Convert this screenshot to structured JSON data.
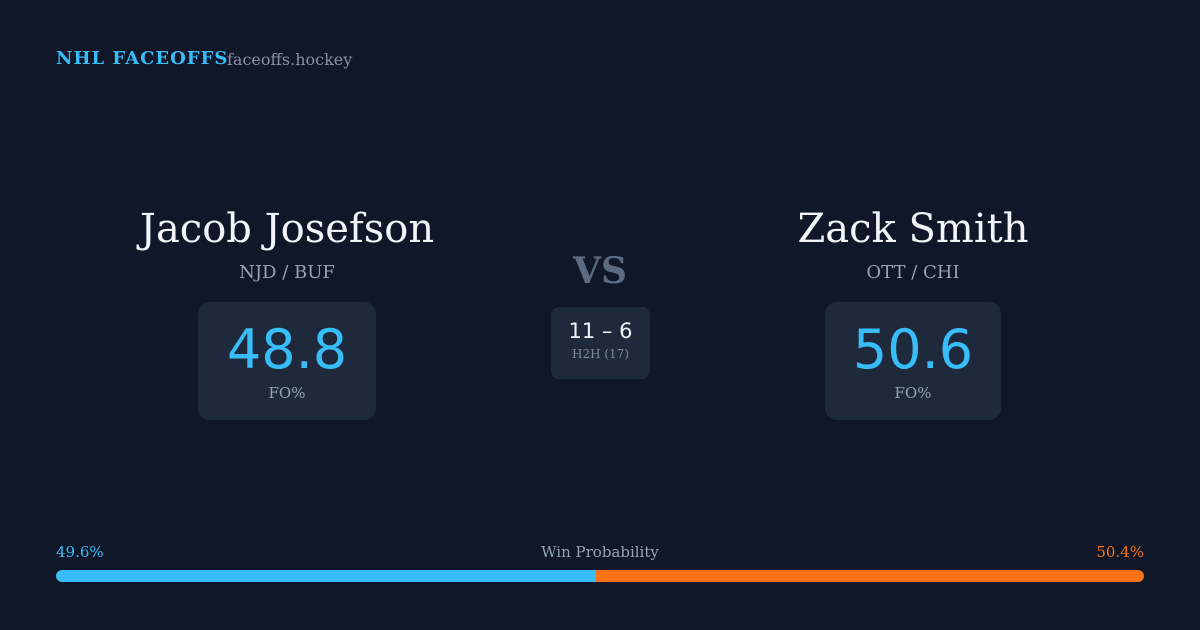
{
  "header": {
    "brand": "NHL FACEOFFS",
    "site": "faceoffs.hockey"
  },
  "players": [
    {
      "name": "Jacob Josefson",
      "teams": "NJD / BUF",
      "stat": "48.8",
      "stat_label": "FO%"
    },
    {
      "name": "Zack Smith",
      "teams": "OTT / CHI",
      "stat": "50.6",
      "stat_label": "FO%"
    }
  ],
  "versus": "VS",
  "head_to_head": {
    "score": "11 – 6",
    "label": "H2H (17)"
  },
  "win_probability": {
    "title": "Win Probability",
    "left": {
      "value": 49.6,
      "label": "49.6%",
      "color": "#38bdf8"
    },
    "right": {
      "value": 50.4,
      "label": "50.4%",
      "color": "#f97316"
    }
  }
}
